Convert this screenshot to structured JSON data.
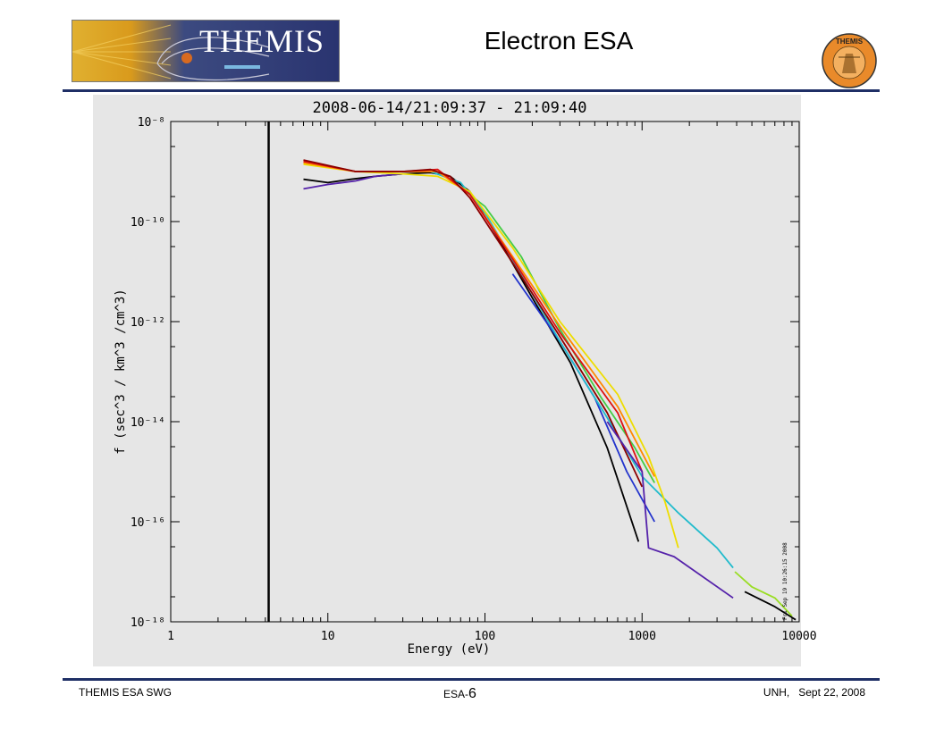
{
  "header": {
    "slide_title": "Electron ESA",
    "logo_text": "THEMIS",
    "seal_text": "THEMIS"
  },
  "footer": {
    "left": "THEMIS ESA SWG",
    "center_prefix": "ESA-",
    "page_number": "6",
    "right": "UNH,   Sept 22, 2008"
  },
  "colors": {
    "rule": "#1f2f66",
    "plot_background": "#e6e6e6"
  },
  "chart_data": {
    "type": "line",
    "title": "2008-06-14/21:09:37 - 21:09:40",
    "xlabel": "Energy  (eV)",
    "ylabel": "f (sec^3 / km^3 /cm^3)",
    "x_scale": "log",
    "y_scale": "log",
    "xlim": [
      1,
      10000
    ],
    "ylim": [
      1e-18,
      1e-08
    ],
    "grid": false,
    "x_ticks": [
      {
        "value": 1,
        "label": "1"
      },
      {
        "value": 10,
        "label": "10"
      },
      {
        "value": 100,
        "label": "100"
      },
      {
        "value": 1000,
        "label": "1000"
      },
      {
        "value": 10000,
        "label": "10000"
      }
    ],
    "y_ticks": [
      {
        "value": 1e-08,
        "label": "10⁻⁸"
      },
      {
        "value": 1e-10,
        "label": "10⁻¹⁰"
      },
      {
        "value": 1e-12,
        "label": "10⁻¹²"
      },
      {
        "value": 1e-14,
        "label": "10⁻¹⁴"
      },
      {
        "value": 1e-16,
        "label": "10⁻¹⁶"
      },
      {
        "value": 1e-18,
        "label": "10⁻¹⁸"
      }
    ],
    "vertical_line_x": 4.2,
    "side_stamp": "Fri Sep 19 10:26:15 2008",
    "series": [
      {
        "color": "#000000",
        "x": [
          7,
          10,
          14,
          20,
          30,
          45,
          60,
          80,
          120,
          200,
          350,
          600,
          950
        ],
        "y": [
          7e-10,
          6e-10,
          7e-10,
          8e-10,
          9e-10,
          9.5e-10,
          8e-10,
          4e-10,
          5e-11,
          3e-12,
          1.5e-13,
          3e-15,
          4e-17
        ]
      },
      {
        "color": "#5522aa",
        "x": [
          7,
          10,
          15,
          20,
          30
        ],
        "y": [
          4.5e-10,
          5.5e-10,
          6.5e-10,
          8e-10,
          9e-10
        ]
      },
      {
        "color": "#2233cc",
        "x": [
          150,
          300,
          500,
          800,
          1200
        ],
        "y": [
          9e-12,
          4e-13,
          3e-14,
          1e-15,
          1e-16
        ]
      },
      {
        "color": "#22bbcc",
        "x": [
          45,
          70,
          100,
          160,
          300,
          600,
          1000,
          1700,
          3000,
          3800
        ],
        "y": [
          1e-09,
          6e-10,
          1.5e-10,
          1.2e-11,
          4e-13,
          1.2e-14,
          8e-16,
          1.5e-16,
          3e-17,
          1.2e-17
        ]
      },
      {
        "color": "#44cc44",
        "x": [
          60,
          100,
          170,
          300,
          550,
          900,
          1200
        ],
        "y": [
          7e-10,
          2e-10,
          2e-11,
          7e-13,
          3e-14,
          3e-15,
          6e-16
        ]
      },
      {
        "color": "#99dd22",
        "x": [
          3900,
          5000,
          7000,
          9000
        ],
        "y": [
          1e-17,
          5e-18,
          3e-18,
          1.3e-18
        ]
      },
      {
        "color": "#eedd00",
        "x": [
          7,
          15,
          30,
          50,
          80,
          150,
          300,
          700,
          1100,
          1400,
          1700
        ],
        "y": [
          1.4e-09,
          1e-09,
          9e-10,
          8e-10,
          4e-10,
          3e-11,
          1e-12,
          3.5e-14,
          2e-15,
          2.5e-16,
          3e-17
        ]
      },
      {
        "color": "#ff8800",
        "x": [
          7,
          15,
          30,
          50,
          80,
          150,
          300,
          700,
          1200
        ],
        "y": [
          1.5e-09,
          1e-09,
          1e-09,
          1e-09,
          3.5e-10,
          2e-11,
          8e-13,
          2e-14,
          8e-16
        ]
      },
      {
        "color": "#dd1111",
        "x": [
          7,
          15,
          30,
          50,
          80,
          150,
          300,
          700,
          1000
        ],
        "y": [
          1.6e-09,
          1e-09,
          1e-09,
          1.1e-09,
          3.5e-10,
          1.8e-11,
          6e-13,
          1.5e-14,
          1e-15
        ]
      },
      {
        "color": "#8b0000",
        "x": [
          7,
          15,
          30,
          45,
          60,
          80,
          150,
          300,
          600,
          1000
        ],
        "y": [
          1.7e-09,
          1e-09,
          1e-09,
          1.1e-09,
          8e-10,
          3e-10,
          1.5e-11,
          5e-13,
          1.5e-14,
          5e-16
        ]
      },
      {
        "color": "#5522aa",
        "x": [
          600,
          1000,
          1100,
          1600,
          3800
        ],
        "y": [
          1e-14,
          1e-15,
          3e-17,
          2e-17,
          3e-18
        ]
      },
      {
        "color": "#000000",
        "x": [
          4500,
          7000,
          9500
        ],
        "y": [
          4e-18,
          2e-18,
          1.1e-18
        ]
      }
    ]
  }
}
